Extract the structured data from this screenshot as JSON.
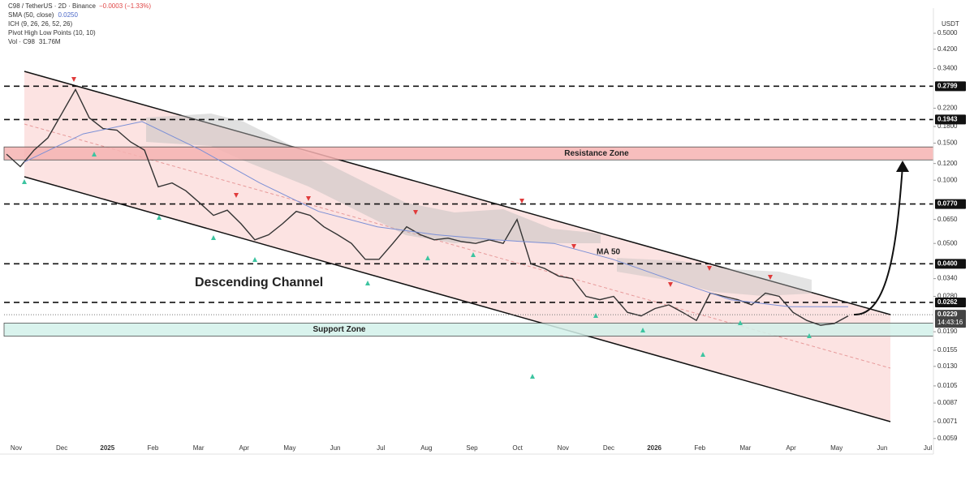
{
  "chart_data": {
    "type": "line",
    "title": "C98 / TetherUS · 2D · Binance",
    "change": "−0.0003 (−1.33%)",
    "indicators": [
      {
        "name": "SMA (50, close)",
        "value": "0.0250"
      },
      {
        "name": "ICH (9, 26, 26, 52, 26)"
      },
      {
        "name": "Pivot High Low Points (10, 10)"
      },
      {
        "name": "Vol · C98",
        "value": "31.76M"
      }
    ],
    "currency": "USDT",
    "yscale": "log",
    "ylim": [
      0.0052,
      0.63
    ],
    "yticks": [
      {
        "value": 0.5,
        "label": "0.5000"
      },
      {
        "value": 0.42,
        "label": "0.4200"
      },
      {
        "value": 0.34,
        "label": "0.3400"
      },
      {
        "value": 0.22,
        "label": "0.2200"
      },
      {
        "value": 0.18,
        "label": "0.1800"
      },
      {
        "value": 0.15,
        "label": "0.1500"
      },
      {
        "value": 0.12,
        "label": "0.1200"
      },
      {
        "value": 0.1,
        "label": "0.1000"
      },
      {
        "value": 0.065,
        "label": "0.0650"
      },
      {
        "value": 0.05,
        "label": "0.0500"
      },
      {
        "value": 0.034,
        "label": "0.0340"
      },
      {
        "value": 0.028,
        "label": "0.0280"
      },
      {
        "value": 0.019,
        "label": "0.0190"
      },
      {
        "value": 0.0155,
        "label": "0.0155"
      },
      {
        "value": 0.013,
        "label": "0.0130"
      },
      {
        "value": 0.0105,
        "label": "0.0105"
      },
      {
        "value": 0.0087,
        "label": "0.0087"
      },
      {
        "value": 0.0071,
        "label": "0.0071"
      },
      {
        "value": 0.0059,
        "label": "0.0059"
      }
    ],
    "xticks": [
      "Nov",
      "Dec",
      "2025",
      "Feb",
      "Mar",
      "Apr",
      "May",
      "Jun",
      "Jul",
      "Aug",
      "Sep",
      "Oct",
      "Nov",
      "Dec",
      "2026",
      "Feb",
      "Mar",
      "Apr",
      "May",
      "Jun",
      "Jul"
    ],
    "series": [
      {
        "name": "C98 / TetherUS",
        "color": "#333333",
        "values": [
          0.133,
          0.116,
          0.139,
          0.159,
          0.207,
          0.27,
          0.198,
          0.176,
          0.173,
          0.152,
          0.139,
          0.093,
          0.097,
          0.089,
          0.078,
          0.068,
          0.072,
          0.062,
          0.052,
          0.055,
          0.062,
          0.071,
          0.068,
          0.06,
          0.055,
          0.05,
          0.042,
          0.042,
          0.05,
          0.06,
          0.055,
          0.052,
          0.053,
          0.051,
          0.05,
          0.052,
          0.05,
          0.065,
          0.04,
          0.038,
          0.035,
          0.034,
          0.028,
          0.027,
          0.028,
          0.0235,
          0.0226,
          0.0245,
          0.0255,
          0.0235,
          0.0215,
          0.029,
          0.028,
          0.027,
          0.0255,
          0.029,
          0.028,
          0.0235,
          0.0215,
          0.0204,
          0.0208,
          0.0226
        ]
      },
      {
        "name": "MA 50",
        "color": "#7b8fd6",
        "values": [
          0.122,
          0.166,
          0.19,
          0.139,
          0.097,
          0.071,
          0.06,
          0.055,
          0.052,
          0.05,
          0.042,
          0.0335,
          0.027,
          0.025,
          0.025
        ]
      }
    ],
    "levels": [
      {
        "value": 0.2799,
        "label": "0.2799"
      },
      {
        "value": 0.1943,
        "label": "0.1943"
      },
      {
        "value": 0.077,
        "label": "0.0770"
      },
      {
        "value": 0.04,
        "label": "0.0400"
      },
      {
        "value": 0.0262,
        "label": "0.0262"
      }
    ],
    "last": {
      "value": 0.0229,
      "label": "0.0229"
    },
    "countdown": "14:43:16",
    "zones": [
      {
        "name": "Resistance Zone",
        "range": [
          0.1248,
          0.1439
        ],
        "color": "#f6b3b2"
      },
      {
        "name": "Support Zone",
        "range": [
          0.0181,
          0.0209
        ],
        "color": "#d3f1ea"
      }
    ],
    "annotations": [
      "Descending Channel"
    ]
  }
}
